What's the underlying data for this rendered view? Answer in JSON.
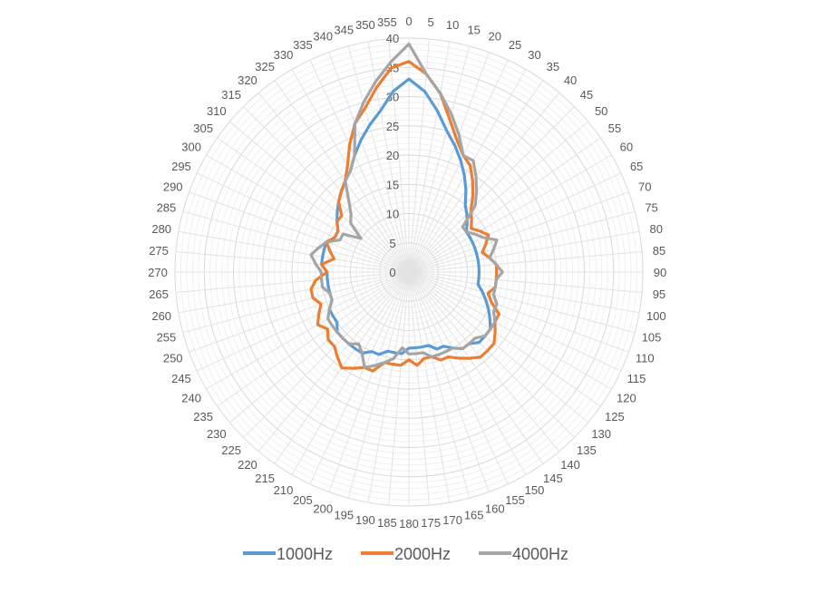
{
  "chart_data": {
    "type": "radar",
    "title": "",
    "angle_step": 5,
    "angle_labels": [
      "0",
      "5",
      "10",
      "15",
      "20",
      "25",
      "30",
      "35",
      "40",
      "45",
      "50",
      "55",
      "60",
      "65",
      "70",
      "75",
      "80",
      "85",
      "90",
      "95",
      "100",
      "105",
      "110",
      "115",
      "120",
      "125",
      "130",
      "135",
      "140",
      "145",
      "150",
      "155",
      "160",
      "165",
      "170",
      "175",
      "180",
      "185",
      "190",
      "195",
      "200",
      "205",
      "210",
      "215",
      "220",
      "225",
      "230",
      "235",
      "240",
      "245",
      "250",
      "255",
      "260",
      "265",
      "270",
      "275",
      "280",
      "285",
      "290",
      "295",
      "300",
      "305",
      "310",
      "315",
      "320",
      "325",
      "330",
      "335",
      "340",
      "345",
      "350",
      "355"
    ],
    "radial_ticks": [
      "0",
      "5",
      "10",
      "15",
      "20",
      "25",
      "30",
      "35",
      "40"
    ],
    "rmin": 0,
    "rmax": 40,
    "legend_position": "bottom",
    "grid": true,
    "series": [
      {
        "name": "1000Hz",
        "color": "#5B9BD5",
        "values": [
          33,
          31,
          28,
          25,
          23,
          21,
          19,
          17,
          15,
          14,
          13,
          12,
          12,
          12,
          12,
          12,
          12,
          12,
          12,
          12,
          12,
          13,
          14,
          15,
          16,
          17,
          17,
          17,
          16,
          16,
          15,
          14,
          14,
          13,
          13,
          13,
          13,
          14,
          14,
          14,
          15,
          15,
          16,
          16,
          16,
          16,
          16,
          15,
          15,
          15,
          14,
          14,
          14,
          14,
          14,
          15,
          15,
          15,
          15,
          14,
          14,
          15,
          16,
          17,
          18,
          19,
          20,
          22,
          24,
          26,
          28,
          31
        ]
      },
      {
        "name": "2000Hz",
        "color": "#ED7D31",
        "values": [
          36,
          34,
          31,
          27,
          24,
          22,
          21,
          19,
          17,
          15,
          14,
          13,
          14,
          15,
          14,
          13,
          14,
          15,
          15,
          15,
          15,
          14,
          15,
          17,
          17,
          18,
          19,
          19,
          19,
          18,
          17,
          16,
          16,
          15,
          15,
          16,
          15,
          16,
          16,
          16,
          18,
          18,
          19,
          20,
          19,
          18,
          18,
          17,
          18,
          17,
          16,
          17,
          17,
          16,
          14,
          15,
          13,
          14,
          15,
          14,
          14,
          15,
          15,
          17,
          18,
          19,
          21,
          24,
          27,
          29,
          32,
          35
        ]
      },
      {
        "name": "4000Hz",
        "color": "#A5A5A5",
        "values": [
          39,
          34,
          31,
          28,
          25,
          22,
          22,
          20,
          18,
          16,
          12,
          12,
          13,
          14,
          16,
          15,
          14,
          15,
          16,
          15,
          15,
          15,
          16,
          16,
          17,
          17,
          17,
          16,
          16,
          16,
          15,
          15,
          15,
          15,
          14,
          14,
          14,
          13,
          15,
          16,
          17,
          18,
          16,
          15,
          16,
          16,
          16,
          16,
          16,
          15,
          14,
          14,
          15,
          15,
          15,
          16,
          17,
          16,
          15,
          13,
          13,
          10,
          13,
          14,
          16,
          19,
          20,
          22,
          27,
          30,
          33,
          36
        ]
      }
    ]
  }
}
